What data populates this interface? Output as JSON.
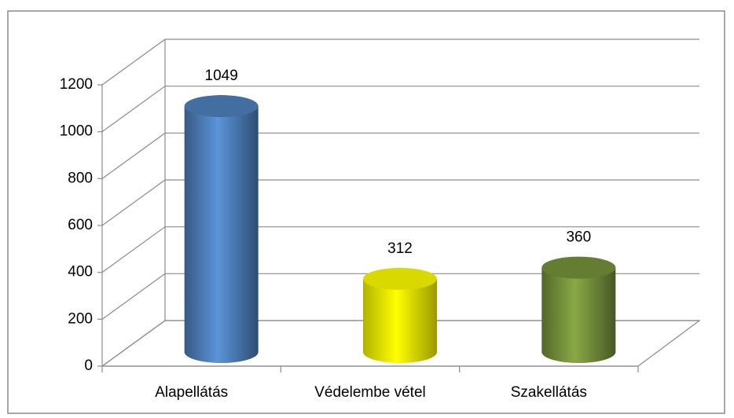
{
  "chart_data": {
    "type": "bar3d",
    "categories": [
      "Alapellátás",
      "Védelembe vétel",
      "Szakellátás"
    ],
    "values": [
      1049,
      312,
      360
    ],
    "colors": [
      "#4f81bd",
      "#ffff00",
      "#77933c"
    ],
    "ylim": [
      0,
      1200
    ],
    "yticks": [
      0,
      200,
      400,
      600,
      800,
      1000,
      1200
    ],
    "grid": true
  }
}
